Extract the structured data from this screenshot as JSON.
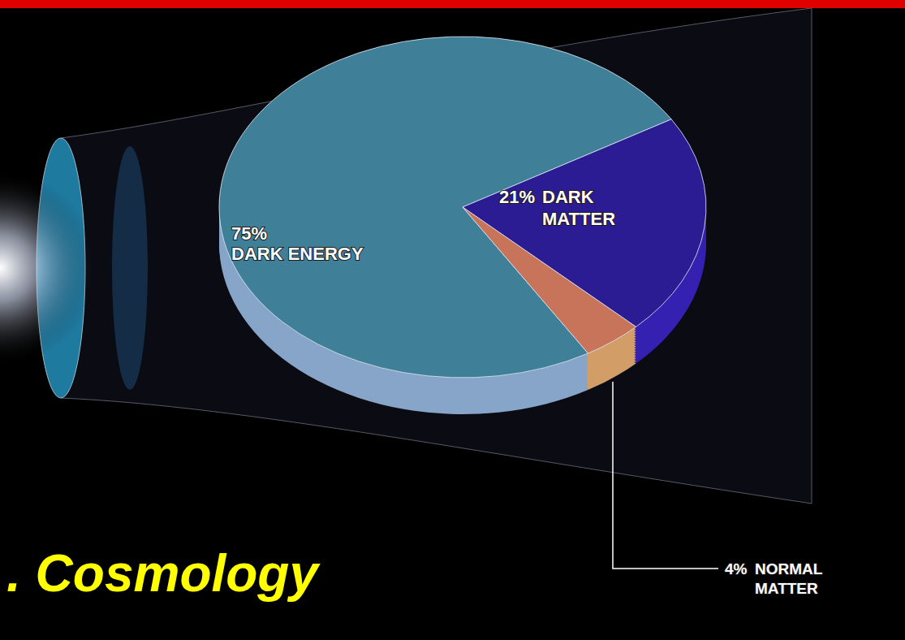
{
  "chart_data": {
    "type": "pie",
    "title": ". Cosmology",
    "categories": [
      "DARK ENERGY",
      "DARK MATTER",
      "NORMAL MATTER"
    ],
    "values": [
      75,
      21,
      4
    ],
    "value_labels": [
      "75%",
      "21%",
      "4%"
    ],
    "colors": [
      "#3f8098",
      "#2c1c94",
      "#c8745a"
    ],
    "data_labels": true
  }
}
